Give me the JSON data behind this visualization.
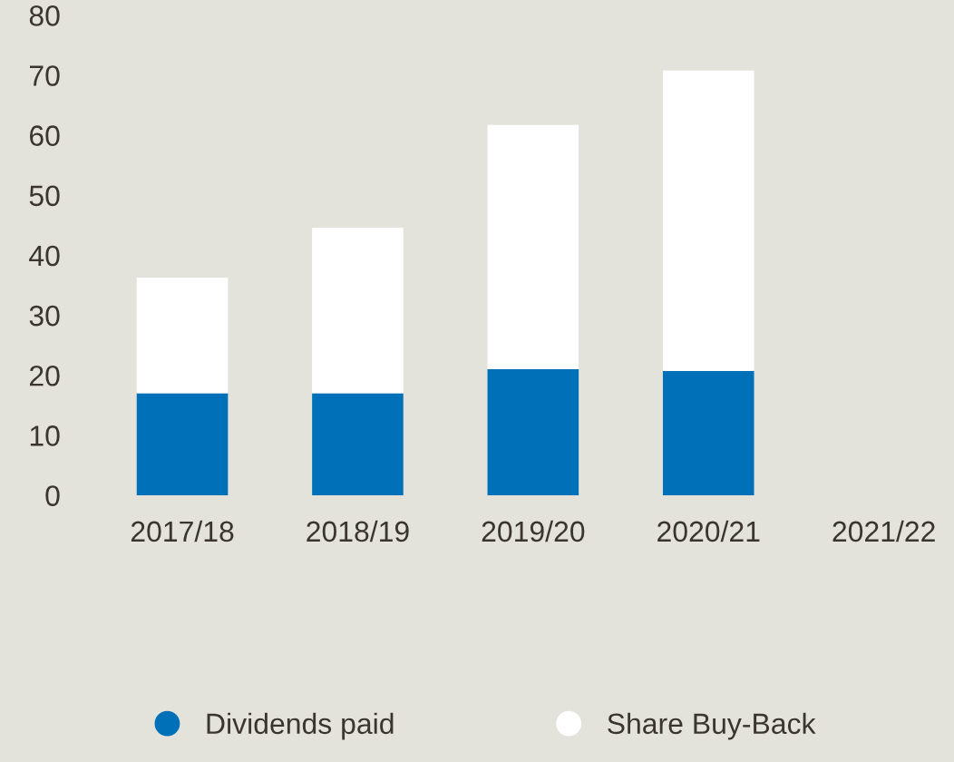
{
  "chart_data": {
    "type": "bar",
    "stacked": true,
    "categories": [
      "2017/18",
      "2018/19",
      "2019/20",
      "2020/21",
      "2021/22"
    ],
    "series": [
      {
        "name": "Dividends paid",
        "color": "#0070b8",
        "values": [
          17,
          17,
          21,
          20.7,
          null
        ]
      },
      {
        "name": "Share Buy-Back",
        "color": "#ffffff",
        "values": [
          19.3,
          27.6,
          40.7,
          50.1,
          null
        ]
      }
    ],
    "ylim": [
      0,
      80
    ],
    "yticks": [
      0,
      10,
      20,
      30,
      40,
      50,
      60,
      70,
      80
    ],
    "grid": false,
    "legend": "bottom"
  }
}
